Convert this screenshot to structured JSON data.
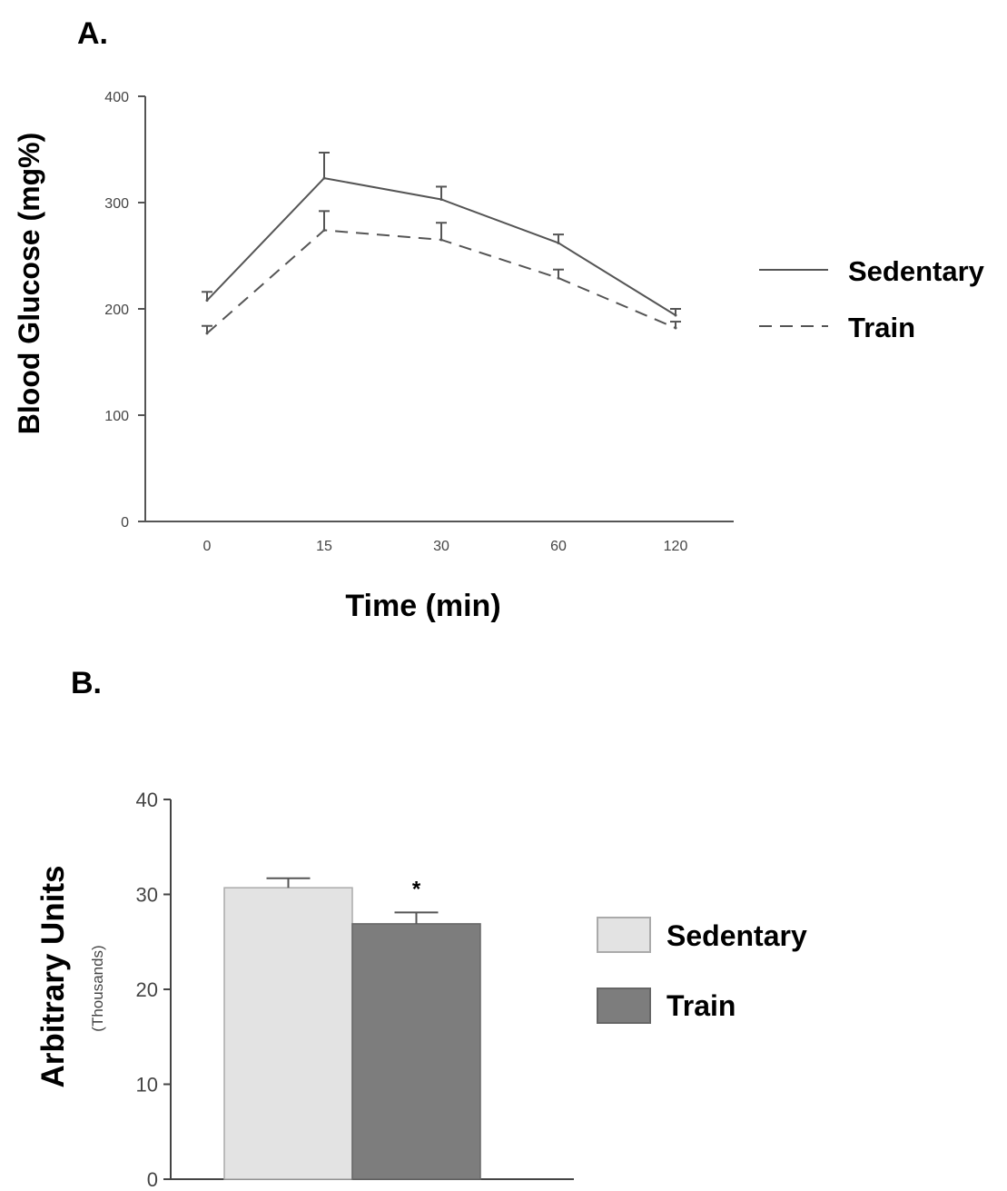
{
  "chart_data": [
    {
      "panel": "A.",
      "type": "line",
      "xlabel": "Time (min)",
      "ylabel": "Blood Glucose (mg%)",
      "ylim": [
        0,
        400
      ],
      "yticks": [
        "0",
        "100",
        "200",
        "300",
        "400"
      ],
      "categories": [
        "0",
        "15",
        "30",
        "60",
        "120"
      ],
      "legend_position": "right",
      "grid": false,
      "series": [
        {
          "name": "Sedentary",
          "style": "solid",
          "color": "#555555",
          "values": [
            208,
            323,
            303,
            262,
            194
          ],
          "errors": [
            8,
            24,
            12,
            8,
            6
          ]
        },
        {
          "name": "Train",
          "style": "dashed",
          "color": "#555555",
          "values": [
            177,
            274,
            265,
            229,
            182
          ],
          "errors": [
            7,
            18,
            16,
            8,
            6
          ]
        }
      ]
    },
    {
      "panel": "B.",
      "type": "bar",
      "ylabel": "Arbitrary Units",
      "ylabel_sub": "(Thousands)",
      "ylim": [
        0,
        40
      ],
      "yticks": [
        "0",
        "10",
        "20",
        "30",
        "40"
      ],
      "legend_position": "right",
      "grid": false,
      "series": [
        {
          "name": "Sedentary",
          "value": 30.7,
          "error": 1.0,
          "color": "#e3e3e3",
          "annotation": ""
        },
        {
          "name": "Train",
          "value": 26.9,
          "error": 1.2,
          "color": "#7d7d7d",
          "annotation": "*"
        }
      ]
    }
  ]
}
